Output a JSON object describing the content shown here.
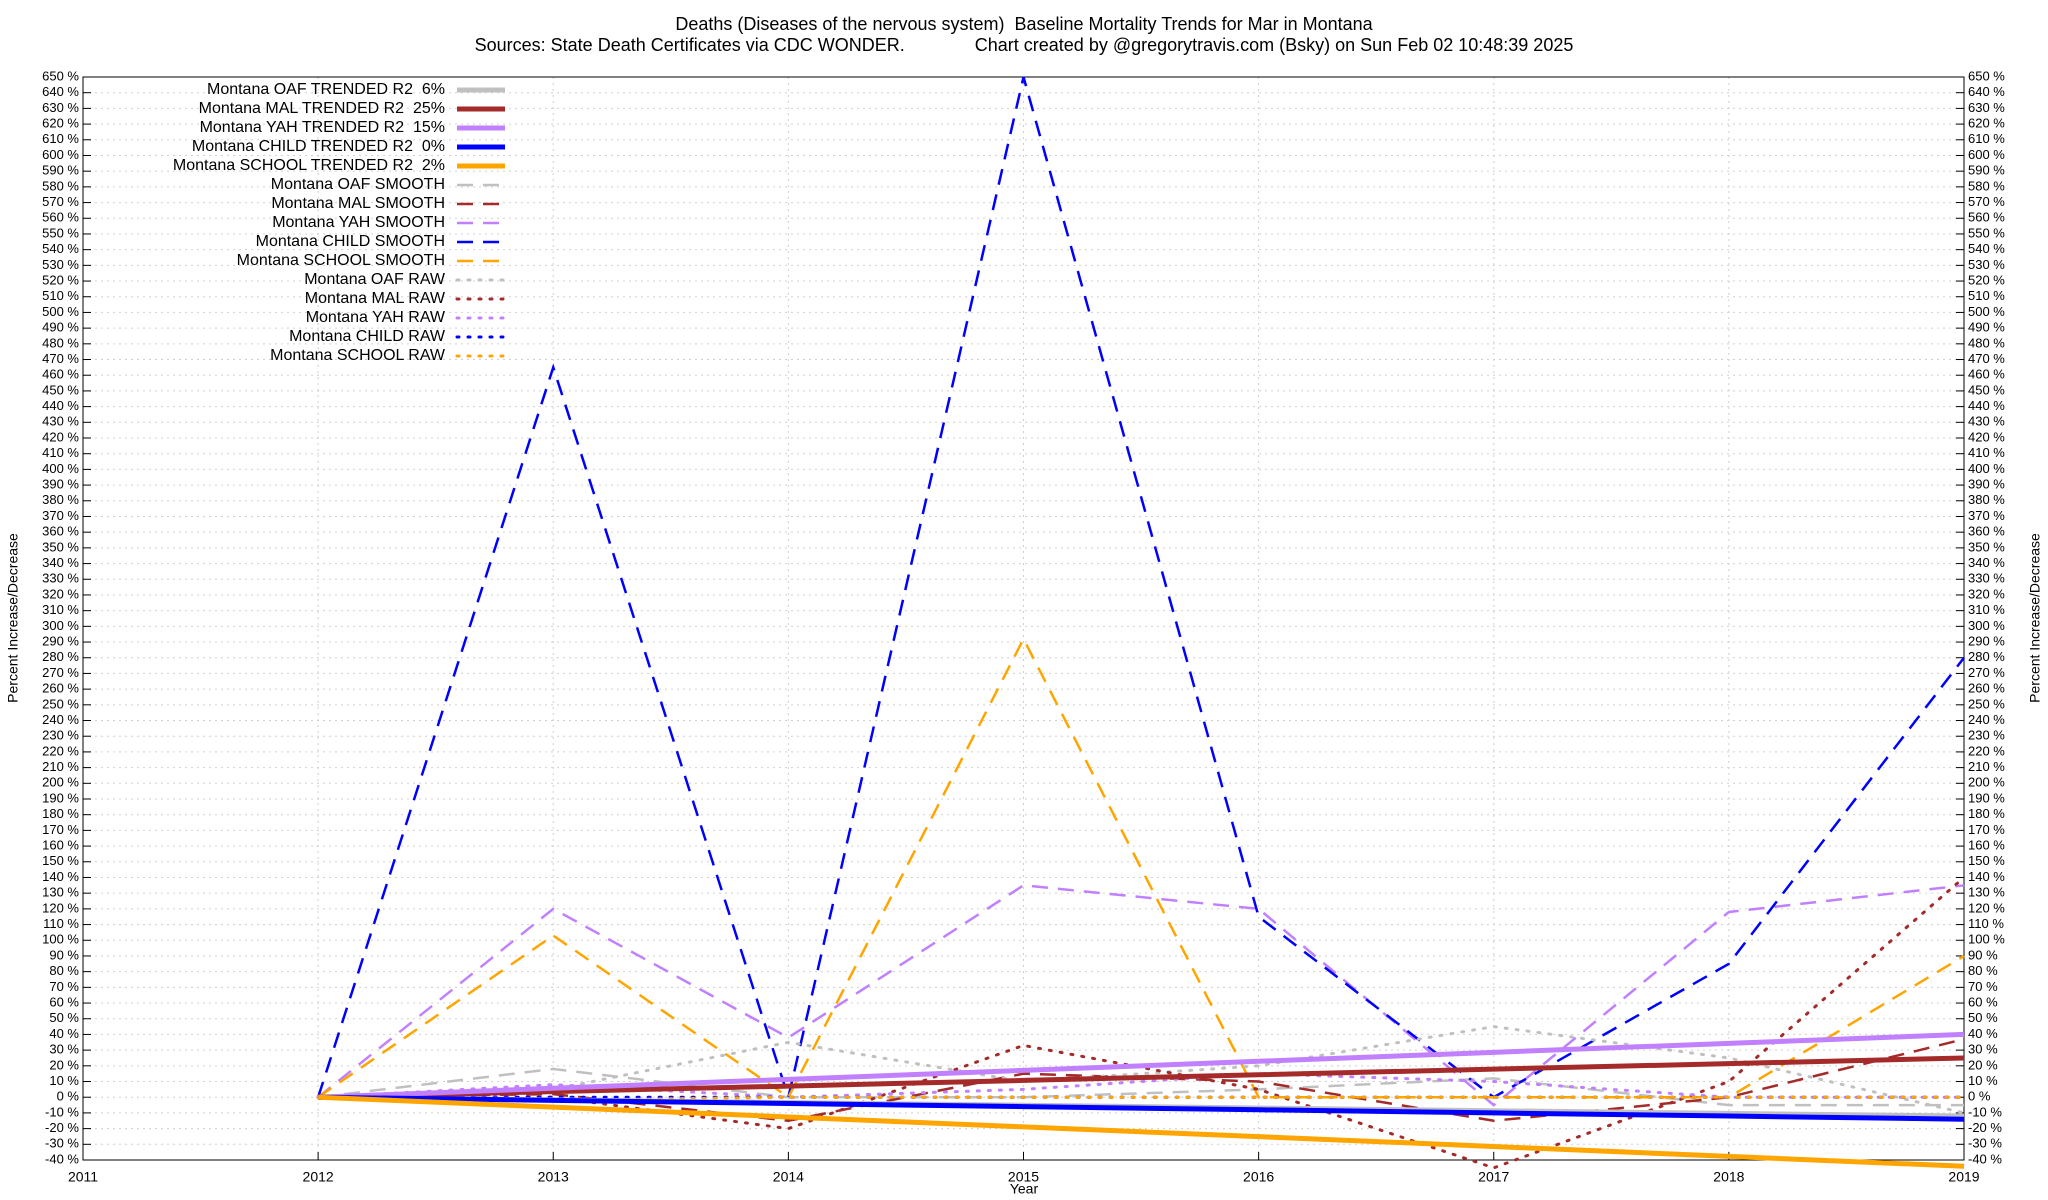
{
  "chart_data": {
    "type": "line",
    "title": "Deaths (Diseases of the nervous system)  Baseline Mortality Trends for Mar in Montana",
    "subtitle": "Sources: State Death Certificates via CDC WONDER.              Chart created by @gregorytravis.com (Bsky) on Sun Feb 02 10:48:39 2025",
    "xlabel": "Year",
    "ylabel": "Percent Increase/Decrease",
    "x": [
      2012,
      2013,
      2014,
      2015,
      2016,
      2017,
      2018,
      2019
    ],
    "xlim": [
      2011,
      2019
    ],
    "xticks": [
      2011,
      2012,
      2013,
      2014,
      2015,
      2016,
      2017,
      2018,
      2019
    ],
    "ylim": [
      -40,
      650
    ],
    "yticks": [
      {
        "value": -40,
        "label": "-40 %"
      },
      {
        "value": -30,
        "label": "-30 %"
      },
      {
        "value": -20,
        "label": "-20 %"
      },
      {
        "value": -10,
        "label": "-10 %"
      },
      {
        "value": 0,
        "label": "0 %"
      },
      {
        "value": 10,
        "label": "10 %"
      },
      {
        "value": 20,
        "label": "20 %"
      },
      {
        "value": 30,
        "label": "30 %"
      },
      {
        "value": 40,
        "label": "40 %"
      },
      {
        "value": 50,
        "label": "50 %"
      },
      {
        "value": 60,
        "label": "60 %"
      },
      {
        "value": 70,
        "label": "70 %"
      },
      {
        "value": 80,
        "label": "80 %"
      },
      {
        "value": 90,
        "label": "90 %"
      },
      {
        "value": 100,
        "label": "100 %"
      },
      {
        "value": 110,
        "label": "110 %"
      },
      {
        "value": 120,
        "label": "120 %"
      },
      {
        "value": 130,
        "label": "130 %"
      },
      {
        "value": 140,
        "label": "140 %"
      },
      {
        "value": 150,
        "label": "150 %"
      },
      {
        "value": 160,
        "label": "160 %"
      },
      {
        "value": 170,
        "label": "170 %"
      },
      {
        "value": 180,
        "label": "180 %"
      },
      {
        "value": 190,
        "label": "190 %"
      },
      {
        "value": 200,
        "label": "200 %"
      },
      {
        "value": 210,
        "label": "210 %"
      },
      {
        "value": 220,
        "label": "220 %"
      },
      {
        "value": 230,
        "label": "230 %"
      },
      {
        "value": 240,
        "label": "240 %"
      },
      {
        "value": 250,
        "label": "250 %"
      },
      {
        "value": 260,
        "label": "260 %"
      },
      {
        "value": 270,
        "label": "270 %"
      },
      {
        "value": 280,
        "label": "280 %"
      },
      {
        "value": 290,
        "label": "290 %"
      },
      {
        "value": 300,
        "label": "300 %"
      },
      {
        "value": 310,
        "label": "310 %"
      },
      {
        "value": 320,
        "label": "320 %"
      },
      {
        "value": 330,
        "label": "330 %"
      },
      {
        "value": 340,
        "label": "340 %"
      },
      {
        "value": 350,
        "label": "350 %"
      },
      {
        "value": 360,
        "label": "360 %"
      },
      {
        "value": 370,
        "label": "370 %"
      },
      {
        "value": 380,
        "label": "380 %"
      },
      {
        "value": 390,
        "label": "390 %"
      },
      {
        "value": 400,
        "label": "400 %"
      },
      {
        "value": 410,
        "label": "410 %"
      },
      {
        "value": 420,
        "label": "420 %"
      },
      {
        "value": 430,
        "label": "430 %"
      },
      {
        "value": 440,
        "label": "440 %"
      },
      {
        "value": 450,
        "label": "450 %"
      },
      {
        "value": 460,
        "label": "460 %"
      },
      {
        "value": 470,
        "label": "470 %"
      },
      {
        "value": 480,
        "label": "480 %"
      },
      {
        "value": 490,
        "label": "490 %"
      },
      {
        "value": 500,
        "label": "500 %"
      },
      {
        "value": 510,
        "label": "510 %"
      },
      {
        "value": 520,
        "label": "520 %"
      },
      {
        "value": 530,
        "label": "530 %"
      },
      {
        "value": 540,
        "label": "540 %"
      },
      {
        "value": 550,
        "label": "550 %"
      },
      {
        "value": 560,
        "label": "560 %"
      },
      {
        "value": 570,
        "label": "570 %"
      },
      {
        "value": 580,
        "label": "580 %"
      },
      {
        "value": 590,
        "label": "590 %"
      },
      {
        "value": 600,
        "label": "600 %"
      },
      {
        "value": 610,
        "label": "610 %"
      },
      {
        "value": 620,
        "label": "620 %"
      },
      {
        "value": 630,
        "label": "630 %"
      },
      {
        "value": 640,
        "label": "640 %"
      },
      {
        "value": 650,
        "label": "650 %"
      }
    ],
    "grid": true,
    "legend": "upper left",
    "series": [
      {
        "name": "Montana OAF TRENDED R2  6%",
        "color": "#c0c0c0",
        "style": "solid",
        "values": [
          0,
          -1.7,
          -3.4,
          -5.1,
          -6.9,
          -8.6,
          -10.3,
          -12
        ]
      },
      {
        "name": "Montana MAL TRENDED R2  25%",
        "color": "#a52a2a",
        "style": "solid",
        "values": [
          0,
          3.6,
          7.1,
          10.7,
          14.3,
          17.9,
          21.4,
          25
        ]
      },
      {
        "name": "Montana YAH TRENDED R2  15%",
        "color": "#c080ff",
        "style": "solid",
        "values": [
          0,
          5.7,
          11.4,
          17.1,
          22.9,
          28.6,
          34.3,
          40
        ]
      },
      {
        "name": "Montana CHILD TRENDED R2  0%",
        "color": "#0000ff",
        "style": "solid",
        "values": [
          0,
          -2,
          -4,
          -6,
          -8,
          -10,
          -12,
          -14
        ]
      },
      {
        "name": "Montana SCHOOL TRENDED R2  2%",
        "color": "#ffa500",
        "style": "solid",
        "values": [
          0,
          -6.3,
          -12.6,
          -18.9,
          -25.1,
          -31.4,
          -37.7,
          -44
        ]
      },
      {
        "name": "Montana OAF SMOOTH",
        "color": "#c0c0c0",
        "style": "dashed",
        "values": [
          0,
          18,
          0,
          0,
          5,
          12,
          -5,
          -5
        ]
      },
      {
        "name": "Montana MAL SMOOTH",
        "color": "#a52a2a",
        "style": "dashed",
        "values": [
          0,
          2,
          -15,
          15,
          10,
          -15,
          0,
          37
        ]
      },
      {
        "name": "Montana YAH SMOOTH",
        "color": "#c080ff",
        "style": "dashed",
        "values": [
          0,
          120,
          38,
          135,
          120,
          -5,
          118,
          135
        ]
      },
      {
        "name": "Montana CHILD SMOOTH",
        "color": "#0000ff",
        "style": "dashed",
        "values": [
          0,
          465,
          0,
          650,
          115,
          0,
          85,
          280
        ]
      },
      {
        "name": "Montana SCHOOL SMOOTH",
        "color": "#ffa500",
        "style": "dashed",
        "values": [
          0,
          103,
          0,
          292,
          0,
          0,
          0,
          90
        ]
      },
      {
        "name": "Montana OAF RAW",
        "color": "#c0c0c0",
        "style": "dotted",
        "values": [
          0,
          5,
          35,
          10,
          20,
          45,
          25,
          -10
        ]
      },
      {
        "name": "Montana MAL RAW",
        "color": "#a52a2a",
        "style": "dotted",
        "values": [
          0,
          0,
          -20,
          33,
          5,
          -45,
          10,
          140
        ]
      },
      {
        "name": "Montana YAH RAW",
        "color": "#c080ff",
        "style": "dotted",
        "values": [
          0,
          8,
          0,
          5,
          15,
          10,
          0,
          0
        ]
      },
      {
        "name": "Montana CHILD RAW",
        "color": "#0000ff",
        "style": "dotted",
        "values": [
          0,
          0,
          0,
          0,
          0,
          0,
          0,
          0
        ]
      },
      {
        "name": "Montana SCHOOL RAW",
        "color": "#ffa500",
        "style": "dotted",
        "values": [
          0,
          -2,
          0,
          0,
          0,
          0,
          0,
          0
        ]
      }
    ]
  }
}
